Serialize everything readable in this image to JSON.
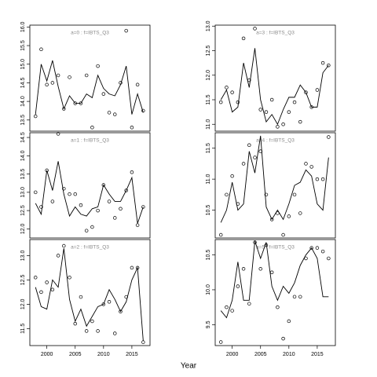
{
  "xlabel": "Year",
  "chart_data": [
    {
      "type": "line",
      "title": "a=0 : f=IBTS_Q3",
      "x": [
        1998,
        1999,
        2000,
        2001,
        2002,
        2003,
        2004,
        2005,
        2006,
        2007,
        2008,
        2009,
        2010,
        2011,
        2012,
        2013,
        2014,
        2015,
        2016,
        2017
      ],
      "observed": [
        13.6,
        15.4,
        14.45,
        14.5,
        14.7,
        13.8,
        14.65,
        13.95,
        13.95,
        14.7,
        13.3,
        14.95,
        14.2,
        13.7,
        13.65,
        14.5,
        15.9,
        13.3,
        14.45,
        13.75
      ],
      "fitted": [
        13.65,
        15.0,
        14.55,
        15.1,
        14.4,
        13.8,
        14.15,
        13.95,
        13.95,
        14.2,
        14.1,
        14.7,
        14.35,
        14.2,
        14.15,
        14.45,
        14.95,
        13.65,
        14.2,
        13.7
      ],
      "xlim": [
        1997,
        2018.2
      ],
      "ylim": [
        13.2,
        16.05
      ],
      "yticks": [
        {
          "value": 13.5,
          "label": "13.5"
        },
        {
          "value": 14,
          "label": "14.0"
        },
        {
          "value": 14.5,
          "label": "14.5"
        },
        {
          "value": 15,
          "label": "15.0"
        },
        {
          "value": 15.5,
          "label": "15.5"
        },
        {
          "value": 16,
          "label": "16.0"
        }
      ]
    },
    {
      "type": "line",
      "title": "a=1 : f=IBTS_Q3",
      "x": [
        1998,
        1999,
        2000,
        2001,
        2002,
        2003,
        2004,
        2005,
        2006,
        2007,
        2008,
        2009,
        2010,
        2011,
        2012,
        2013,
        2014,
        2015,
        2016,
        2017
      ],
      "observed": [
        13.0,
        12.6,
        13.6,
        12.75,
        14.6,
        13.1,
        12.95,
        12.95,
        12.65,
        11.95,
        12.05,
        12.5,
        13.2,
        12.75,
        12.3,
        12.55,
        13.05,
        13.55,
        12.1,
        12.6
      ],
      "fitted": [
        12.7,
        12.4,
        13.6,
        13.05,
        13.85,
        12.95,
        12.35,
        12.6,
        12.4,
        12.35,
        12.55,
        12.6,
        13.2,
        12.95,
        12.75,
        12.75,
        13.05,
        13.4,
        12.15,
        12.6
      ],
      "xlim": [
        1997,
        2018.2
      ],
      "ylim": [
        11.75,
        14.63
      ],
      "yticks": [
        {
          "value": 12,
          "label": "12.0"
        },
        {
          "value": 12.5,
          "label": "12.5"
        },
        {
          "value": 13,
          "label": "13.0"
        },
        {
          "value": 13.5,
          "label": "13.5"
        },
        {
          "value": 14,
          "label": "14.0"
        },
        {
          "value": 14.5,
          "label": "14.5"
        }
      ]
    },
    {
      "type": "line",
      "title": "a=2 : f=IBTS_Q3",
      "x": [
        1998,
        1999,
        2000,
        2001,
        2002,
        2003,
        2004,
        2005,
        2006,
        2007,
        2008,
        2009,
        2010,
        2011,
        2012,
        2013,
        2014,
        2015,
        2016,
        2017
      ],
      "observed": [
        12.55,
        12.25,
        12.45,
        12.3,
        13.0,
        13.2,
        12.55,
        11.6,
        12.15,
        11.45,
        11.65,
        11.45,
        12.0,
        12.05,
        11.4,
        11.85,
        12.15,
        12.75,
        12.75,
        11.22
      ],
      "fitted": [
        12.35,
        11.95,
        11.9,
        12.5,
        12.35,
        13.15,
        12.1,
        11.65,
        11.9,
        11.55,
        11.75,
        11.95,
        12.0,
        12.3,
        12.1,
        11.85,
        12.05,
        12.5,
        12.75,
        11.25
      ],
      "xlim": [
        1997,
        2018.2
      ],
      "ylim": [
        11.15,
        13.33
      ],
      "xticks": [
        2000,
        2005,
        2010,
        2015
      ],
      "yticks": [
        {
          "value": 11.5,
          "label": "11.5"
        },
        {
          "value": 12,
          "label": "12.0"
        },
        {
          "value": 12.5,
          "label": "12.5"
        },
        {
          "value": 13,
          "label": "13.0"
        }
      ]
    },
    {
      "type": "line",
      "title": "a=3 : f=IBTS_Q3",
      "x": [
        1998,
        1999,
        2000,
        2001,
        2002,
        2003,
        2004,
        2005,
        2006,
        2007,
        2008,
        2009,
        2010,
        2011,
        2012,
        2013,
        2014,
        2015,
        2016,
        2017
      ],
      "observed": [
        11.45,
        11.75,
        11.65,
        11.45,
        12.75,
        11.9,
        12.95,
        11.3,
        11.25,
        11.5,
        10.95,
        11.0,
        11.25,
        11.45,
        11.05,
        11.65,
        11.35,
        11.7,
        12.25,
        12.2
      ],
      "fitted": [
        11.5,
        11.7,
        11.25,
        11.35,
        12.25,
        11.75,
        12.55,
        11.5,
        11.05,
        11.2,
        11.0,
        11.3,
        11.55,
        11.55,
        11.8,
        11.65,
        11.35,
        11.35,
        12.05,
        12.2
      ],
      "xlim": [
        1997,
        2018.2
      ],
      "ylim": [
        10.86,
        13.02
      ],
      "yticks": [
        {
          "value": 11,
          "label": "11.0"
        },
        {
          "value": 11.5,
          "label": "11.5"
        },
        {
          "value": 12,
          "label": "12.0"
        },
        {
          "value": 12.5,
          "label": "12.5"
        },
        {
          "value": 13,
          "label": "13.0"
        }
      ]
    },
    {
      "type": "line",
      "title": "a=4 : f=IBTS_Q3",
      "x": [
        1998,
        1999,
        2000,
        2001,
        2002,
        2003,
        2004,
        2005,
        2006,
        2007,
        2008,
        2009,
        2010,
        2011,
        2012,
        2013,
        2014,
        2015,
        2016,
        2017
      ],
      "observed": [
        10.1,
        10.75,
        11.05,
        10.6,
        11.25,
        11.55,
        11.35,
        11.45,
        10.75,
        10.35,
        10.45,
        10.1,
        10.4,
        10.75,
        10.45,
        11.25,
        11.2,
        11.0,
        11.0,
        11.68
      ],
      "fitted": [
        10.3,
        10.5,
        10.95,
        10.5,
        10.6,
        11.45,
        11.1,
        11.7,
        10.55,
        10.35,
        10.5,
        10.35,
        10.6,
        10.9,
        10.95,
        11.15,
        11.05,
        10.6,
        10.5,
        11.35
      ],
      "xlim": [
        1997,
        2018.2
      ],
      "ylim": [
        10.05,
        11.75
      ],
      "yticks": [
        {
          "value": 10.5,
          "label": "10.5"
        },
        {
          "value": 11,
          "label": "11.0"
        },
        {
          "value": 11.5,
          "label": "11.5"
        }
      ]
    },
    {
      "type": "line",
      "title": "a=5 : f=IBTS_Q3",
      "x": [
        1998,
        1999,
        2000,
        2001,
        2002,
        2003,
        2004,
        2005,
        2006,
        2007,
        2008,
        2009,
        2010,
        2011,
        2012,
        2013,
        2014,
        2015,
        2016,
        2017
      ],
      "observed": [
        9.25,
        9.75,
        9.7,
        10.05,
        10.3,
        9.8,
        10.68,
        10.3,
        10.64,
        10.25,
        9.75,
        9.3,
        9.55,
        9.9,
        9.9,
        10.45,
        10.6,
        10.6,
        10.55,
        10.45
      ],
      "fitted": [
        9.7,
        9.6,
        9.85,
        10.4,
        9.85,
        9.85,
        10.7,
        10.45,
        10.68,
        10.05,
        9.85,
        10.05,
        9.95,
        10.1,
        10.35,
        10.5,
        10.6,
        10.45,
        9.9,
        9.9
      ],
      "xlim": [
        1997,
        2018.2
      ],
      "ylim": [
        9.2,
        10.72
      ],
      "xticks": [
        2000,
        2005,
        2010,
        2015
      ],
      "yticks": [
        {
          "value": 9.5,
          "label": "9.5"
        },
        {
          "value": 10,
          "label": "10.0"
        },
        {
          "value": 10.5,
          "label": "10.5"
        }
      ]
    }
  ]
}
